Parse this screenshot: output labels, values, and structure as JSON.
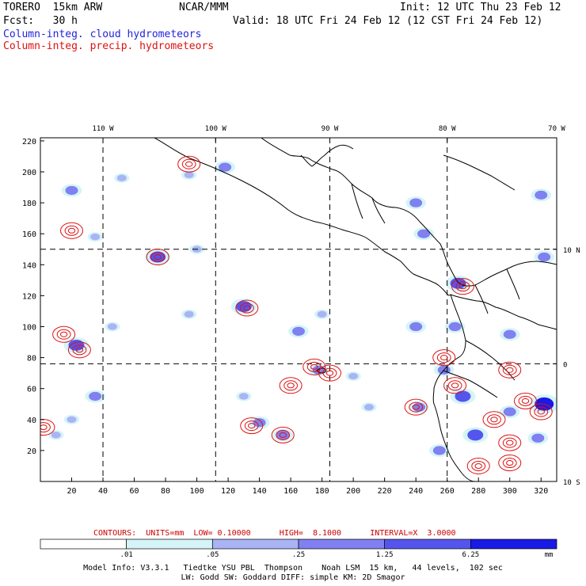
{
  "header": {
    "model": "TORERO  15km ARW",
    "org": "NCAR/MMM",
    "init": "Init: 12 UTC Thu 23 Feb 12",
    "fcst": "Fcst:   30 h",
    "valid": "Valid: 18 UTC Fri 24 Feb 12 (12 CST Fri 24 Feb 12)",
    "field_cloud": "Column-integ. cloud hydrometeors",
    "field_precip": "Column-integ. precip. hydrometeors"
  },
  "chart_data": {
    "type": "heatmap",
    "title": "Column-integ. cloud hydrometeors / Column-integ. precip. hydrometeors",
    "x_grid_range": [
      0,
      330
    ],
    "y_grid_range": [
      0,
      222
    ],
    "x_ticks": [
      20,
      40,
      60,
      80,
      100,
      120,
      140,
      160,
      180,
      200,
      220,
      240,
      260,
      280,
      300,
      320
    ],
    "y_ticks": [
      20,
      40,
      60,
      80,
      100,
      120,
      140,
      160,
      180,
      200,
      220
    ],
    "lon_labels": [
      "110 W",
      "100 W",
      "90 W",
      "80 W",
      "70 W"
    ],
    "lon_grid_x": [
      40,
      112,
      185,
      260,
      330
    ],
    "lat_labels": [
      "10 N",
      "0",
      "10 S"
    ],
    "lat_grid_y": [
      150,
      76,
      0
    ],
    "colorbar": {
      "thresholds": [
        ".01",
        ".05",
        ".25",
        "1.25",
        "6.25"
      ],
      "units": "mm",
      "colors": [
        "#ffffff",
        "#d4f4f8",
        "#aab4f4",
        "#8080f0",
        "#5555ee",
        "#1a1ae6"
      ]
    },
    "contours": {
      "label": "CONTOURS:  UNITS=mm  LOW= 0.10000      HIGH=  8.1000      INTERVAL=X  3.0000",
      "units": "mm",
      "low": 0.1,
      "high": 8.1,
      "interval_factor": 3.0,
      "color": "#e01010"
    },
    "cloud_blobs": [
      {
        "x": 20,
        "y": 188,
        "level": 2
      },
      {
        "x": 95,
        "y": 198,
        "level": 1
      },
      {
        "x": 118,
        "y": 203,
        "level": 2
      },
      {
        "x": 52,
        "y": 196,
        "level": 1
      },
      {
        "x": 35,
        "y": 158,
        "level": 1
      },
      {
        "x": 75,
        "y": 145,
        "level": 3
      },
      {
        "x": 100,
        "y": 150,
        "level": 1
      },
      {
        "x": 23,
        "y": 88,
        "level": 3
      },
      {
        "x": 130,
        "y": 113,
        "level": 3
      },
      {
        "x": 46,
        "y": 100,
        "level": 1
      },
      {
        "x": 95,
        "y": 108,
        "level": 1
      },
      {
        "x": 180,
        "y": 108,
        "level": 1
      },
      {
        "x": 165,
        "y": 97,
        "level": 2
      },
      {
        "x": 240,
        "y": 100,
        "level": 2
      },
      {
        "x": 265,
        "y": 100,
        "level": 2
      },
      {
        "x": 240,
        "y": 180,
        "level": 2
      },
      {
        "x": 245,
        "y": 160,
        "level": 2
      },
      {
        "x": 267,
        "y": 128,
        "level": 3
      },
      {
        "x": 258,
        "y": 72,
        "level": 2
      },
      {
        "x": 270,
        "y": 55,
        "level": 3
      },
      {
        "x": 278,
        "y": 30,
        "level": 3
      },
      {
        "x": 300,
        "y": 45,
        "level": 2
      },
      {
        "x": 322,
        "y": 50,
        "level": 4
      },
      {
        "x": 322,
        "y": 145,
        "level": 2
      },
      {
        "x": 35,
        "y": 55,
        "level": 2
      },
      {
        "x": 20,
        "y": 40,
        "level": 1
      },
      {
        "x": 140,
        "y": 38,
        "level": 2
      },
      {
        "x": 155,
        "y": 30,
        "level": 2
      },
      {
        "x": 178,
        "y": 72,
        "level": 2
      },
      {
        "x": 210,
        "y": 48,
        "level": 1
      },
      {
        "x": 242,
        "y": 48,
        "level": 2
      },
      {
        "x": 300,
        "y": 95,
        "level": 2
      },
      {
        "x": 318,
        "y": 28,
        "level": 2
      },
      {
        "x": 10,
        "y": 30,
        "level": 1
      },
      {
        "x": 200,
        "y": 68,
        "level": 1
      },
      {
        "x": 255,
        "y": 20,
        "level": 2
      },
      {
        "x": 130,
        "y": 55,
        "level": 1
      },
      {
        "x": 320,
        "y": 185,
        "level": 2
      }
    ],
    "precip_centers": [
      {
        "x": 20,
        "y": 162
      },
      {
        "x": 75,
        "y": 145
      },
      {
        "x": 15,
        "y": 95
      },
      {
        "x": 25,
        "y": 85
      },
      {
        "x": 132,
        "y": 112
      },
      {
        "x": 135,
        "y": 36
      },
      {
        "x": 155,
        "y": 30
      },
      {
        "x": 175,
        "y": 74
      },
      {
        "x": 160,
        "y": 62
      },
      {
        "x": 185,
        "y": 70
      },
      {
        "x": 240,
        "y": 48
      },
      {
        "x": 258,
        "y": 80
      },
      {
        "x": 270,
        "y": 126
      },
      {
        "x": 265,
        "y": 62
      },
      {
        "x": 290,
        "y": 40
      },
      {
        "x": 300,
        "y": 25
      },
      {
        "x": 310,
        "y": 52
      },
      {
        "x": 320,
        "y": 45
      },
      {
        "x": 280,
        "y": 10
      },
      {
        "x": 300,
        "y": 12
      },
      {
        "x": 2,
        "y": 35
      },
      {
        "x": 95,
        "y": 205
      },
      {
        "x": 300,
        "y": 72
      }
    ]
  },
  "footer": {
    "line1": "Model Info: V3.3.1   Tiedtke YSU PBL  Thompson    Noah LSM  15 km,   44 levels,  102 sec",
    "line2": "LW: Godd SW: Goddard DIFF: simple KM: 2D Smagor"
  }
}
